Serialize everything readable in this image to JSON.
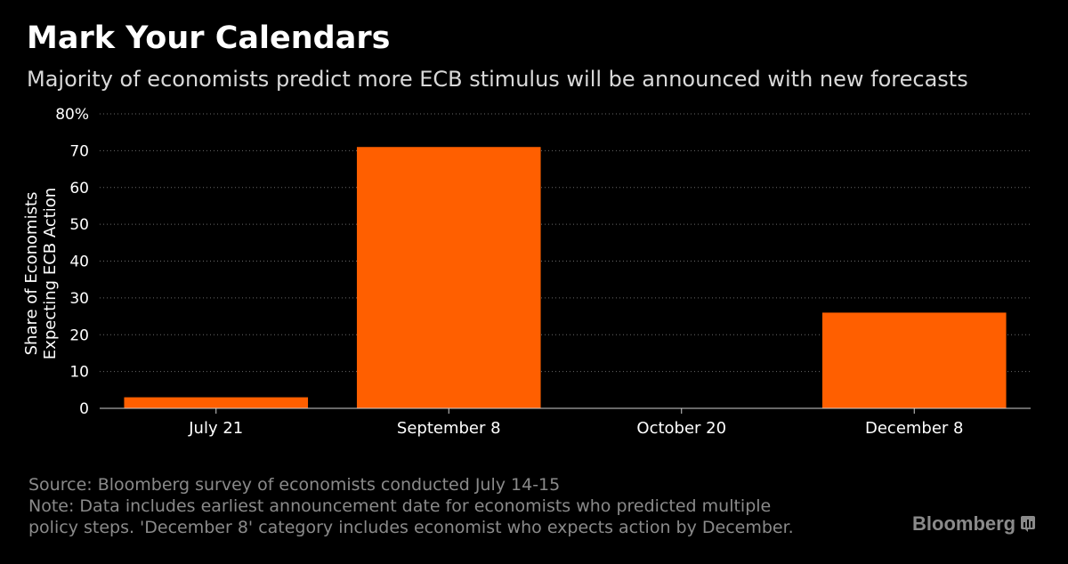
{
  "header": {
    "title": "Mark Your Calendars",
    "subtitle": "Majority of economists predict more ECB stimulus will be announced with new forecasts"
  },
  "chart_data": {
    "type": "bar",
    "categories": [
      "July 21",
      "September 8",
      "October 20",
      "December 8"
    ],
    "values": [
      3,
      71,
      0,
      26
    ],
    "ylabel_lines": [
      "Share of Economists",
      "Expecting ECB Action"
    ],
    "ylim": [
      0,
      80
    ],
    "yticks": [
      0,
      10,
      20,
      30,
      40,
      50,
      60,
      70,
      80
    ],
    "ytick_labels": [
      "0",
      "10",
      "20",
      "30",
      "40",
      "50",
      "60",
      "70",
      "80%"
    ],
    "grid": true,
    "bar_color": "#ff5f00"
  },
  "footer": {
    "source": "Source: Bloomberg survey of economists conducted July 14-15",
    "note_line1": "Note: Data includes earliest announcement date for economists who predicted multiple",
    "note_line2": "policy steps. 'December 8' category includes economist who expects action by December."
  },
  "brand": {
    "name": "Bloomberg",
    "icon": "bloomberg-chart-icon"
  }
}
